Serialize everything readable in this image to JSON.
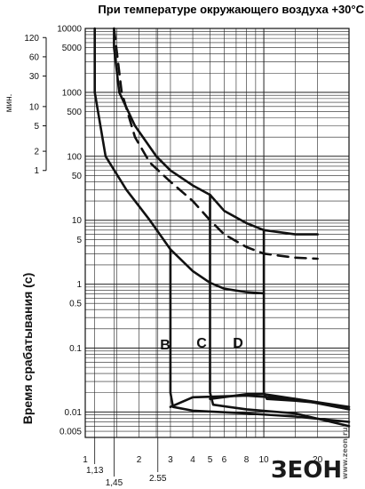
{
  "chart_data": {
    "type": "line",
    "title": "При температуре окружающего воздуха  +30°C",
    "ylabel": "Время срабатывания (с)",
    "ylabel_min": "мин.",
    "x_scale": "log",
    "y_scale": "log",
    "xlim": [
      1,
      30
    ],
    "ylim": [
      0.004,
      10000
    ],
    "x_ticks": [
      "1",
      "1,13",
      "1,45",
      "2",
      "2.55",
      "3",
      "4",
      "5",
      "6",
      "8",
      "10",
      "20"
    ],
    "x_tick_values": [
      1,
      1.13,
      1.45,
      2,
      2.55,
      3,
      4,
      5,
      6,
      8,
      10,
      20
    ],
    "y_ticks_seconds": [
      "10000",
      "5000",
      "1000",
      "500",
      "100",
      "50",
      "10",
      "5",
      "1",
      "0.5",
      "0.1",
      "0.01",
      "0.005"
    ],
    "y_tick_values": [
      10000,
      5000,
      1000,
      500,
      100,
      50,
      10,
      5,
      1,
      0.5,
      0.1,
      0.01,
      0.005
    ],
    "y_ticks_minutes": [
      "120",
      "60",
      "30",
      "10",
      "5",
      "2",
      "1"
    ],
    "y_tick_minutes_values": [
      120,
      60,
      30,
      10,
      5,
      2,
      1
    ],
    "grid": true,
    "series": [
      {
        "name": "",
        "style": "solid",
        "points": [
          [
            1.13,
            10000
          ],
          [
            1.13,
            1000
          ],
          [
            1.3,
            100
          ],
          [
            1.7,
            30
          ],
          [
            2.3,
            10
          ],
          [
            3.0,
            3.5
          ],
          [
            4.0,
            1.6
          ],
          [
            5.0,
            1.05
          ],
          [
            6.0,
            0.85
          ],
          [
            8.0,
            0.75
          ],
          [
            10.0,
            0.72
          ]
        ]
      },
      {
        "name": "",
        "style": "solid",
        "points": [
          [
            1.45,
            10000
          ],
          [
            1.45,
            5000
          ],
          [
            1.55,
            1000
          ],
          [
            1.9,
            300
          ],
          [
            2.5,
            100
          ],
          [
            3.0,
            60
          ],
          [
            4.0,
            35
          ],
          [
            5.0,
            25
          ],
          [
            6.0,
            14
          ],
          [
            8.0,
            9
          ],
          [
            10.0,
            7
          ],
          [
            15.0,
            6
          ],
          [
            20.0,
            6
          ]
        ]
      },
      {
        "name": "",
        "style": "dashed",
        "points": [
          [
            1.45,
            10000
          ],
          [
            1.6,
            1000
          ],
          [
            1.9,
            200
          ],
          [
            2.3,
            80
          ],
          [
            3.0,
            40
          ],
          [
            4.0,
            20
          ],
          [
            5.0,
            10
          ],
          [
            6.0,
            6
          ],
          [
            8.0,
            3.8
          ],
          [
            10.0,
            3.0
          ],
          [
            15.0,
            2.6
          ],
          [
            20.0,
            2.5
          ]
        ]
      },
      {
        "name": "B",
        "style": "solid",
        "points": [
          [
            3,
            3.5
          ],
          [
            3,
            0.02
          ],
          [
            3.1,
            0.012
          ],
          [
            4,
            0.0105
          ],
          [
            8,
            0.0095
          ],
          [
            15,
            0.0085
          ],
          [
            30,
            0.007
          ]
        ]
      },
      {
        "name": "C",
        "style": "solid",
        "points": [
          [
            5,
            25
          ],
          [
            5,
            0.02
          ],
          [
            5.2,
            0.013
          ],
          [
            8,
            0.011
          ],
          [
            15,
            0.0095
          ],
          [
            30,
            0.006
          ]
        ]
      },
      {
        "name": "D",
        "style": "solid",
        "points": [
          [
            10,
            7
          ],
          [
            10,
            0.02
          ],
          [
            10.4,
            0.016
          ],
          [
            15,
            0.015
          ],
          [
            20,
            0.014
          ],
          [
            30,
            0.011
          ]
        ]
      },
      {
        "name": "",
        "style": "solid",
        "points": [
          [
            3,
            0.012
          ],
          [
            4,
            0.017
          ],
          [
            8,
            0.018
          ],
          [
            15,
            0.016
          ],
          [
            30,
            0.012
          ]
        ]
      },
      {
        "name": "",
        "style": "solid",
        "points": [
          [
            5,
            0.016
          ],
          [
            8,
            0.019
          ],
          [
            10,
            0.019
          ],
          [
            15,
            0.016
          ],
          [
            30,
            0.011
          ]
        ]
      }
    ],
    "labels": [
      "B",
      "C",
      "D"
    ]
  },
  "logo": {
    "main": "ЗЕОН",
    "small": "www.zeon.ru"
  }
}
